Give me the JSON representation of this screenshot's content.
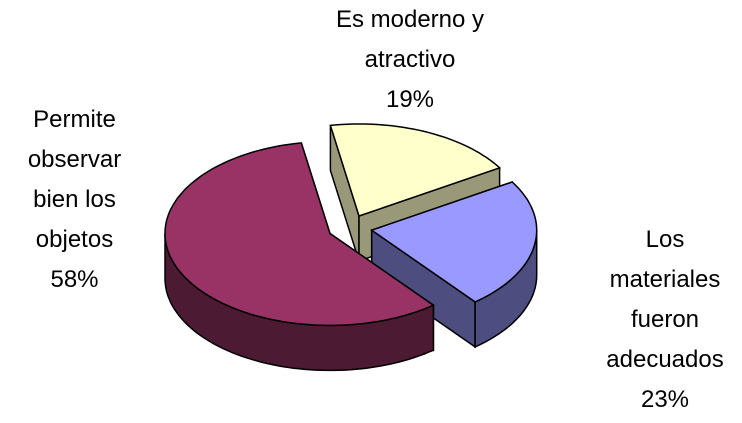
{
  "chart_data": {
    "type": "pie3d",
    "categories": [
      "Es moderno y atractivo",
      "Los materiales fueron adecuados",
      "Permite observar bien los objetos"
    ],
    "values": [
      19,
      23,
      58
    ],
    "value_labels": [
      "19%",
      "23%",
      "58%"
    ],
    "colors": [
      "#ffffcc",
      "#9999ff",
      "#993366"
    ]
  }
}
